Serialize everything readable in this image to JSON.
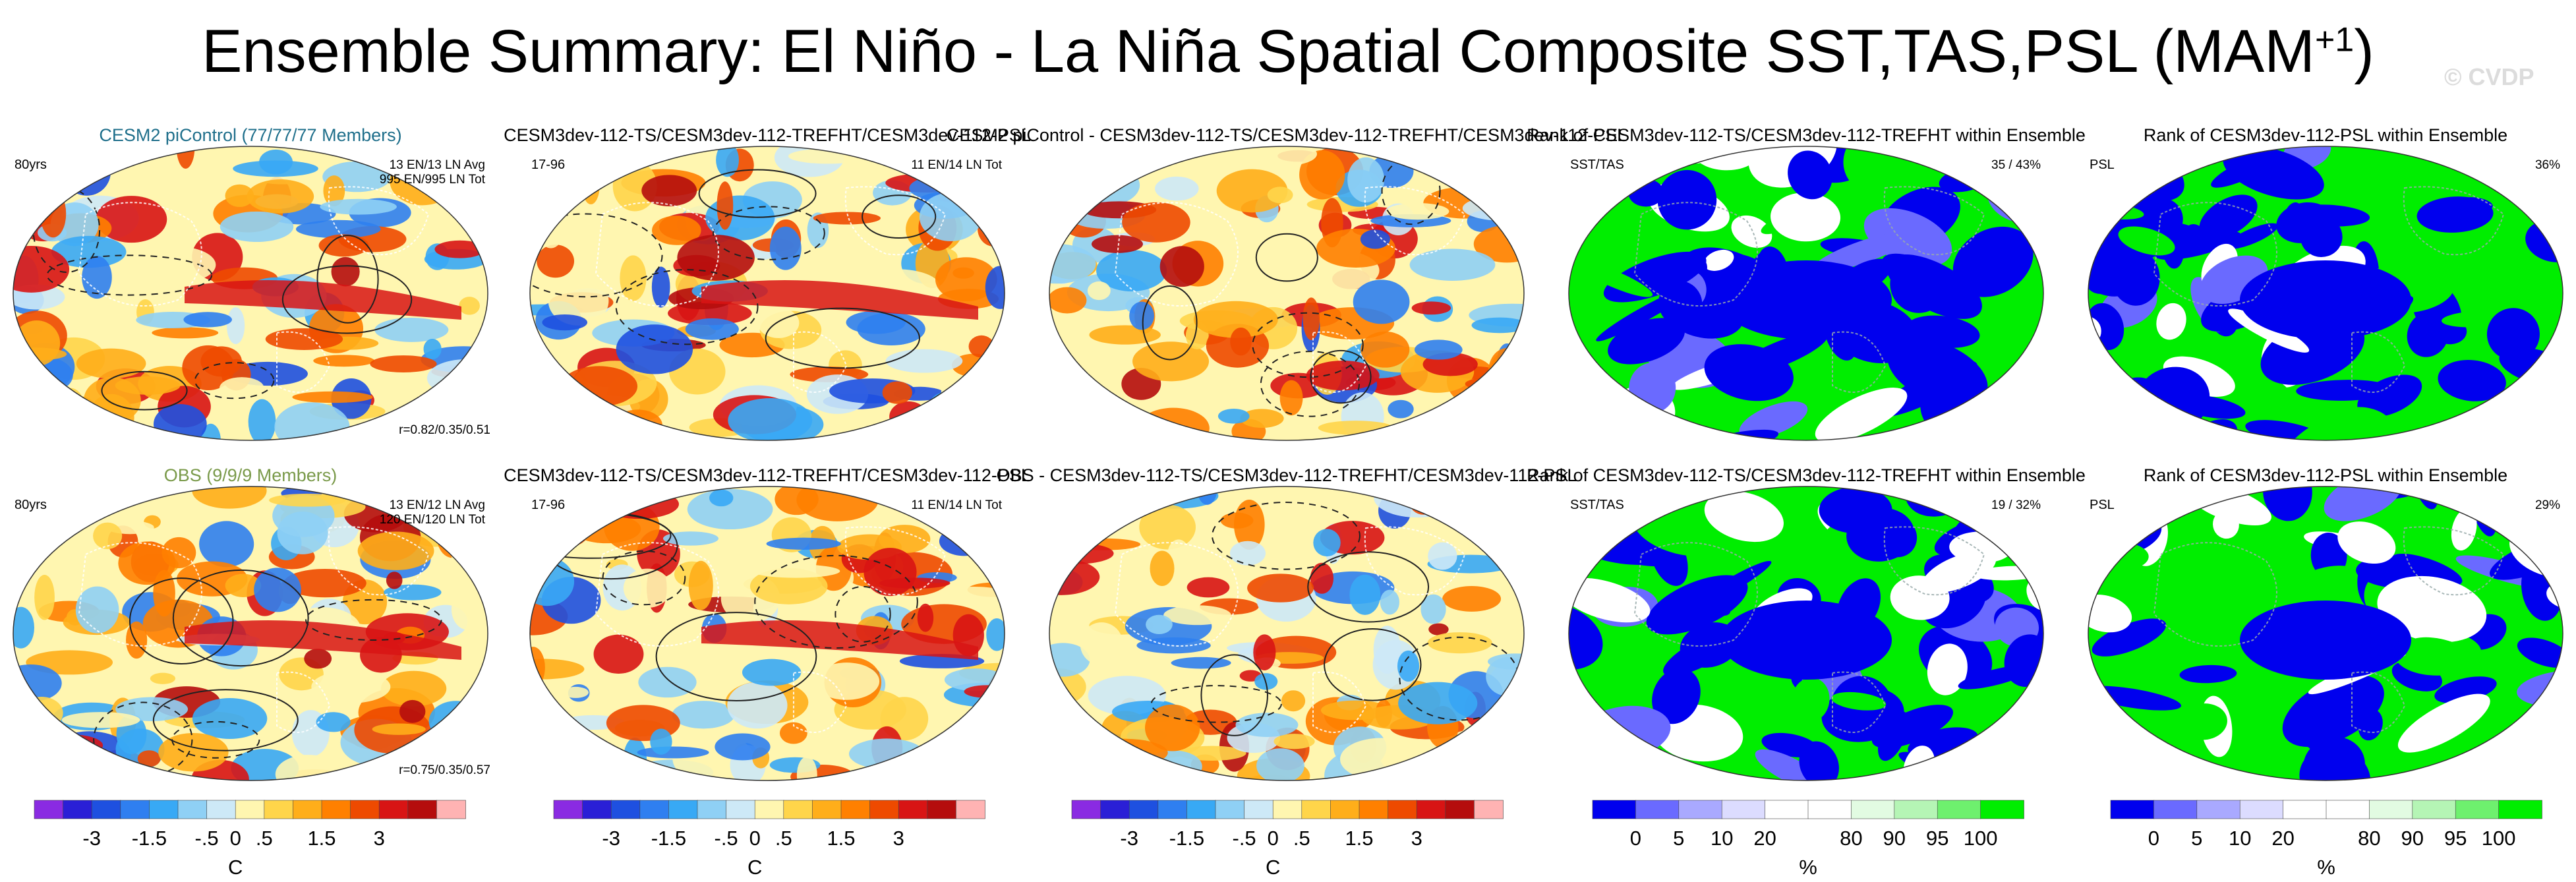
{
  "figure": {
    "title_main": "Ensemble Summary: El Niño - La Niña Spatial Composite SST,TAS,PSL (MAM",
    "title_sup": "+1",
    "title_close": ")",
    "watermark": "© CVDP"
  },
  "chart_data": {
    "type": "heatmap",
    "rows": [
      {
        "panels": [
          {
            "title": "CESM2 piControl (77/77/77 Members)",
            "title_color": "#1f6f8b",
            "left_label": "80yrs",
            "right_label_1": "13 EN/13 LN Avg",
            "right_label_2": "995 EN/995 LN Tot",
            "corner_label": "r=0.82/0.35/0.51",
            "kind": "composite",
            "variant": 0
          },
          {
            "title": "CESM3dev-112-TS/CESM3dev-112-TREFHT/CESM3dev-112-PSL",
            "title_color": "#000000",
            "left_label": "17-96",
            "right_label_1": "11 EN/14 LN Tot",
            "right_label_2": "",
            "corner_label": "",
            "kind": "composite",
            "variant": 1
          },
          {
            "title": "CESM2 piControl - CESM3dev-112-TS/CESM3dev-112-TREFHT/CESM3dev-112-PSL",
            "title_color": "#000000",
            "left_label": "",
            "right_label_1": "",
            "right_label_2": "",
            "corner_label": "",
            "kind": "difference",
            "variant": 2
          },
          {
            "title": "Rank of CESM3dev-112-TS/CESM3dev-112-TREFHT within Ensemble",
            "title_color": "#000000",
            "left_label": "SST/TAS",
            "right_label_1": "35 / 43%",
            "right_label_2": "",
            "corner_label": "",
            "kind": "rank",
            "variant": 3
          },
          {
            "title": "Rank of CESM3dev-112-PSL within Ensemble",
            "title_color": "#000000",
            "left_label": "PSL",
            "right_label_1": "36%",
            "right_label_2": "",
            "corner_label": "",
            "kind": "rank",
            "variant": 4
          }
        ]
      },
      {
        "panels": [
          {
            "title": "OBS (9/9/9 Members)",
            "title_color": "#7a9a4a",
            "left_label": "80yrs",
            "right_label_1": "13 EN/12 LN Avg",
            "right_label_2": "120 EN/120 LN Tot",
            "corner_label": "r=0.75/0.35/0.57",
            "kind": "composite",
            "variant": 5
          },
          {
            "title": "CESM3dev-112-TS/CESM3dev-112-TREFHT/CESM3dev-112-PSL",
            "title_color": "#000000",
            "left_label": "17-96",
            "right_label_1": "11 EN/14 LN Tot",
            "right_label_2": "",
            "corner_label": "",
            "kind": "composite",
            "variant": 6
          },
          {
            "title": "OBS - CESM3dev-112-TS/CESM3dev-112-TREFHT/CESM3dev-112-PSL",
            "title_color": "#000000",
            "left_label": "",
            "right_label_1": "",
            "right_label_2": "",
            "corner_label": "",
            "kind": "difference",
            "variant": 7
          },
          {
            "title": "Rank of CESM3dev-112-TS/CESM3dev-112-TREFHT within Ensemble",
            "title_color": "#000000",
            "left_label": "SST/TAS",
            "right_label_1": "19 /  32%",
            "right_label_2": "",
            "corner_label": "",
            "kind": "rank",
            "variant": 8
          },
          {
            "title": "Rank of CESM3dev-112-PSL within Ensemble",
            "title_color": "#000000",
            "left_label": "PSL",
            "right_label_1": "29%",
            "right_label_2": "",
            "corner_label": "",
            "kind": "rank",
            "variant": 9
          }
        ]
      }
    ],
    "colorbars": [
      {
        "kind": "temperature",
        "unit": "C",
        "colors": [
          "#8a2be2",
          "#2a1fd6",
          "#1e50e0",
          "#2f7ff0",
          "#38a9f5",
          "#8fd0f5",
          "#cde9f7",
          "#fff6b0",
          "#ffd54a",
          "#ffae1a",
          "#ff8000",
          "#ee4a00",
          "#d81414",
          "#b50d0d",
          "#ffb3b3"
        ],
        "tick_labels": [
          "-3",
          "-1.5",
          "-.5",
          "0",
          ".5",
          "1.5",
          "3"
        ],
        "tick_positions": [
          2,
          4,
          6,
          7,
          8,
          10,
          12
        ]
      },
      {
        "kind": "rank",
        "unit": "%",
        "colors": [
          "#0000ee",
          "#6a6aff",
          "#a9a9ff",
          "#dcdcff",
          "#ffffff",
          "#ffffff",
          "#e2fbe2",
          "#b5f5b5",
          "#6ef06e",
          "#00ee00"
        ],
        "tick_labels": [
          "0",
          "5",
          "10",
          "20",
          "80",
          "90",
          "95",
          "100"
        ],
        "tick_positions": [
          1,
          2,
          3,
          4,
          6,
          7,
          8,
          9
        ]
      }
    ]
  }
}
